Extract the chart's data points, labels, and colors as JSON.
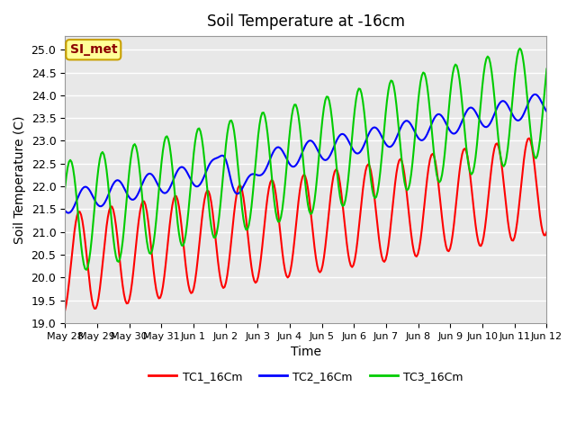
{
  "title": "Soil Temperature at -16cm",
  "xlabel": "Time",
  "ylabel": "Soil Temperature (C)",
  "ylim": [
    19.0,
    25.3
  ],
  "yticks": [
    19.0,
    19.5,
    20.0,
    20.5,
    21.0,
    21.5,
    22.0,
    22.5,
    23.0,
    23.5,
    24.0,
    24.5,
    25.0
  ],
  "bg_color": "#e8e8e8",
  "fig_color": "#ffffff",
  "annotation_text": "SI_met",
  "annotation_color": "#8B0000",
  "annotation_bg": "#ffff99",
  "annotation_border": "#c8a000",
  "line_colors": {
    "TC1": "#ff0000",
    "TC2": "#0000ff",
    "TC3": "#00cc00"
  },
  "legend_labels": [
    "TC1_16Cm",
    "TC2_16Cm",
    "TC3_16Cm"
  ],
  "line_width": 1.5,
  "xtick_labels": [
    "May 28",
    "May 29",
    "May 30",
    "May 31",
    "Jun 1",
    "Jun 2",
    "Jun 3",
    "Jun 4",
    "Jun 5",
    "Jun 6",
    "Jun 7",
    "Jun 8",
    "Jun 9",
    "Jun 10",
    "Jun 11",
    "Jun 12"
  ],
  "n_points": 360
}
